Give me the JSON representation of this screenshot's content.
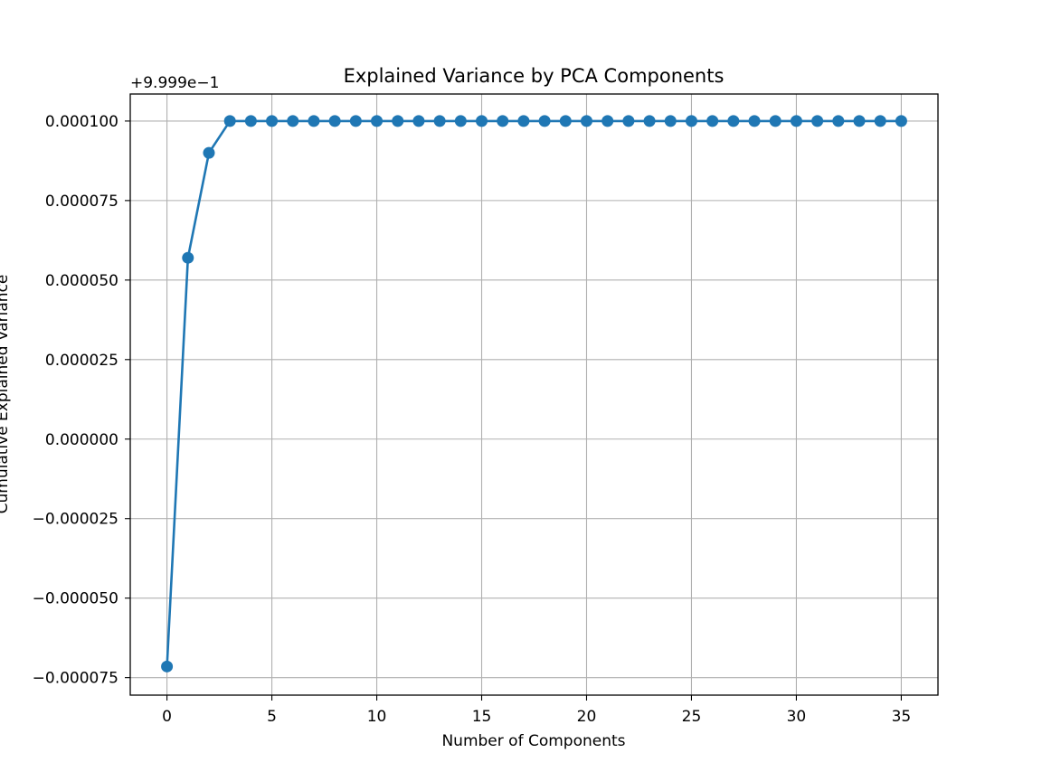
{
  "chart_data": {
    "type": "line",
    "title": "Explained Variance by PCA Components",
    "xlabel": "Number of Components",
    "ylabel": "Cumulative Explained Variance",
    "y_offset_label": "+9.999e−1",
    "x": [
      0,
      1,
      2,
      3,
      4,
      5,
      6,
      7,
      8,
      9,
      10,
      11,
      12,
      13,
      14,
      15,
      16,
      17,
      18,
      19,
      20,
      21,
      22,
      23,
      24,
      25,
      26,
      27,
      28,
      29,
      30,
      31,
      32,
      33,
      34,
      35
    ],
    "series": [
      {
        "values": [
          -7.15e-05,
          5.7e-05,
          9e-05,
          0.0001,
          0.0001,
          0.0001,
          0.0001,
          0.0001,
          0.0001,
          0.0001,
          0.0001,
          0.0001,
          0.0001,
          0.0001,
          0.0001,
          0.0001,
          0.0001,
          0.0001,
          0.0001,
          0.0001,
          0.0001,
          0.0001,
          0.0001,
          0.0001,
          0.0001,
          0.0001,
          0.0001,
          0.0001,
          0.0001,
          0.0001,
          0.0001,
          0.0001,
          0.0001,
          0.0001,
          0.0001,
          0.0001
        ],
        "color": "#1f77b4",
        "marker": "circle"
      }
    ],
    "xlim": [
      -1.75,
      36.75
    ],
    "ylim": [
      -8.05e-05,
      0.0001085
    ],
    "xticks": [
      0,
      5,
      10,
      15,
      20,
      25,
      30,
      35
    ],
    "xtick_labels": [
      "0",
      "5",
      "10",
      "15",
      "20",
      "25",
      "30",
      "35"
    ],
    "yticks": [
      -7.5e-05,
      -5e-05,
      -2.5e-05,
      0,
      2.5e-05,
      5e-05,
      7.5e-05,
      0.0001
    ],
    "ytick_labels": [
      "−0.000075",
      "−0.000050",
      "−0.000025",
      "0.000000",
      "0.000025",
      "0.000050",
      "0.000075",
      "0.000100"
    ],
    "grid": true,
    "legend": "none"
  }
}
